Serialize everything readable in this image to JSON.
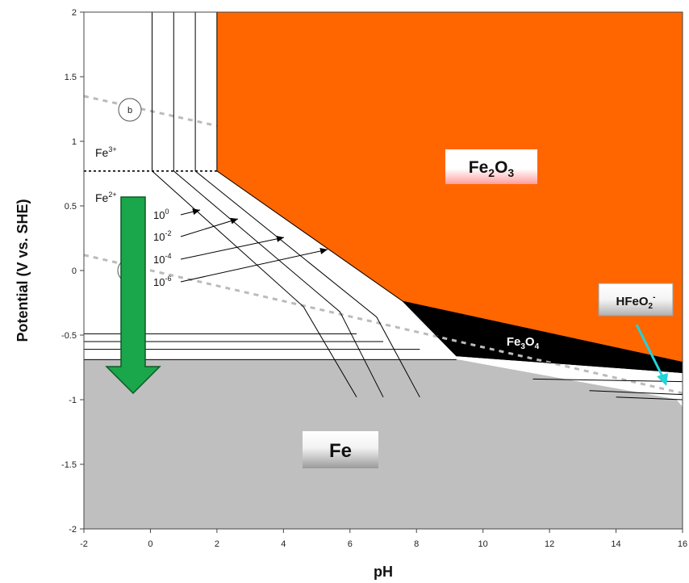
{
  "chart_data": {
    "type": "area",
    "title": "",
    "xlabel": "pH",
    "ylabel": "Potential (V vs. SHE)",
    "xlim": [
      -2,
      16
    ],
    "ylim": [
      -2,
      2
    ],
    "x_ticks": [
      "-2",
      "0",
      "2",
      "4",
      "6",
      "8",
      "10",
      "12",
      "14",
      "16"
    ],
    "y_ticks": [
      "-2",
      "-1.5",
      "-1",
      "-0.5",
      "0",
      "0.5",
      "1",
      "1.5",
      "2"
    ],
    "grid": false,
    "colors": {
      "fe2o3": "#ff6600",
      "fe3o4": "#000000",
      "fe": "#bfbfbf",
      "arrow": "#1aa64a",
      "cyan_arrow": "#22d3d8",
      "water_lines": "#bbbbbb"
    },
    "regions": [
      {
        "name": "Fe2O3",
        "label_main": "Fe",
        "label_sub": "2",
        "label_main2": "O",
        "label_sub2": "3",
        "polygon": [
          [
            2,
            2
          ],
          [
            16,
            2
          ],
          [
            16,
            -0.71
          ],
          [
            7.6,
            -0.24
          ],
          [
            2,
            0.77
          ]
        ]
      },
      {
        "name": "Fe3O4",
        "label_main": "Fe",
        "label_sub": "3",
        "label_main2": "O",
        "label_sub2": "4",
        "polygon": [
          [
            7.6,
            -0.24
          ],
          [
            16,
            -0.71
          ],
          [
            16,
            -0.79
          ],
          [
            9.2,
            -0.66
          ]
        ]
      },
      {
        "name": "Fe",
        "label": "Fe",
        "polygon": [
          [
            -2,
            -0.69
          ],
          [
            9.2,
            -0.69
          ],
          [
            15.8,
            -1.0
          ],
          [
            16,
            -1.06
          ],
          [
            16,
            -2
          ],
          [
            -2,
            -2
          ]
        ]
      }
    ],
    "species_labels": {
      "fe3": {
        "base": "Fe",
        "sup": "3+"
      },
      "fe2": {
        "base": "Fe",
        "sup": "2+"
      },
      "hfeo2": {
        "base": "HFeO",
        "sub": "2",
        "sup": "-"
      }
    },
    "concentration_labels": [
      {
        "base": "10",
        "sup": "0"
      },
      {
        "base": "10",
        "sup": "-2"
      },
      {
        "base": "10",
        "sup": "-4"
      },
      {
        "base": "10",
        "sup": "-6"
      }
    ],
    "concentration_lines": [
      [
        [
          0.05,
          2
        ],
        [
          0.05,
          0.77
        ],
        [
          4.6,
          -0.28
        ],
        [
          6.2,
          -0.98
        ]
      ],
      [
        [
          0.7,
          2
        ],
        [
          0.7,
          0.77
        ],
        [
          5.7,
          -0.32
        ],
        [
          7.0,
          -0.98
        ]
      ],
      [
        [
          1.35,
          2
        ],
        [
          1.35,
          0.77
        ],
        [
          6.8,
          -0.36
        ],
        [
          8.1,
          -0.98
        ]
      ],
      [
        [
          2.0,
          2
        ],
        [
          2.0,
          0.77
        ],
        [
          7.6,
          -0.24
        ],
        [
          9.2,
          -0.66
        ]
      ]
    ],
    "hfeo2_lines": [
      [
        [
          11.5,
          -0.84
        ],
        [
          16,
          -0.86
        ]
      ],
      [
        [
          13.2,
          -0.93
        ],
        [
          16,
          -0.96
        ]
      ],
      [
        [
          14.0,
          -0.98
        ],
        [
          16,
          -1.0
        ]
      ]
    ],
    "reference_lines": {
      "fe3_fe2_potential": 0.77,
      "fe_levels": [
        -0.49,
        -0.55,
        -0.61,
        -0.69
      ]
    },
    "water_lines": {
      "line_b": [
        [
          -2,
          1.35
        ],
        [
          2,
          1.12
        ]
      ],
      "line_a": [
        [
          -2,
          0.12
        ],
        [
          16,
          -0.95
        ]
      ],
      "circle_label_b": "b"
    }
  }
}
